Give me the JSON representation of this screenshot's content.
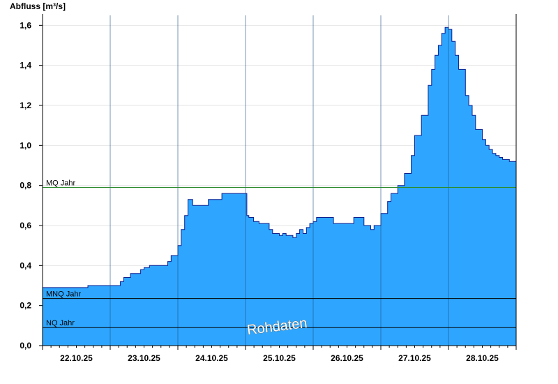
{
  "chart_data": {
    "type": "area",
    "ylabel": "Abfluss [m³/s]",
    "ylim": [
      0,
      1.65
    ],
    "xlim": [
      0,
      7
    ],
    "grid": true,
    "yticks": [
      0,
      0.2,
      0.4,
      0.6,
      0.8,
      1.0,
      1.2,
      1.4,
      1.6
    ],
    "ytick_labels": [
      "0,0",
      "0,2",
      "0,4",
      "0,6",
      "0,8",
      "1,0",
      "1,2",
      "1,4",
      "1,6"
    ],
    "xtick_labels": [
      "22.10.25",
      "23.10.25",
      "24.10.25",
      "25.10.25",
      "26.10.25",
      "27.10.25",
      "28.10.25"
    ],
    "reference_lines": [
      {
        "label": "MQ Jahr",
        "value": 0.79,
        "color": "#2e8b2e"
      },
      {
        "label": "MNQ Jahr",
        "value": 0.235,
        "color": "#000000"
      },
      {
        "label": "NQ Jahr",
        "value": 0.09,
        "color": "#000000"
      }
    ],
    "fill_color": "#2ea6ff",
    "line_color": "#0a1f8f",
    "watermark": "Rohdaten",
    "series": [
      {
        "x": [
          0.0,
          0.65,
          0.67,
          1.1,
          1.15,
          1.2,
          1.3,
          1.45,
          1.5,
          1.58,
          1.85,
          1.9,
          2.0,
          2.05,
          2.1,
          2.15,
          2.2,
          2.22,
          2.3,
          2.45,
          2.5,
          2.65,
          2.7,
          2.95,
          3.02,
          3.05,
          3.12,
          3.2,
          3.35,
          3.4,
          3.5,
          3.55,
          3.6,
          3.7,
          3.75,
          3.8,
          3.85,
          3.9,
          3.95,
          4.0,
          4.05,
          4.1,
          4.15,
          4.3,
          4.55,
          4.6,
          4.75,
          4.85,
          4.9,
          5.0,
          5.1,
          5.15,
          5.25,
          5.35,
          5.45,
          5.5,
          5.6,
          5.7,
          5.75,
          5.8,
          5.85,
          5.9,
          5.95,
          6.0,
          6.05,
          6.1,
          6.15,
          6.25,
          6.3,
          6.35,
          6.4,
          6.5,
          6.55,
          6.6,
          6.65,
          6.7,
          6.75,
          6.8,
          6.85,
          6.9,
          6.95,
          7.0
        ],
        "y": [
          0.29,
          0.29,
          0.3,
          0.3,
          0.32,
          0.34,
          0.36,
          0.38,
          0.39,
          0.4,
          0.42,
          0.45,
          0.5,
          0.58,
          0.65,
          0.73,
          0.73,
          0.7,
          0.7,
          0.73,
          0.73,
          0.76,
          0.76,
          0.76,
          0.65,
          0.64,
          0.62,
          0.61,
          0.58,
          0.56,
          0.55,
          0.56,
          0.55,
          0.54,
          0.56,
          0.58,
          0.56,
          0.59,
          0.61,
          0.62,
          0.64,
          0.64,
          0.64,
          0.61,
          0.61,
          0.64,
          0.6,
          0.58,
          0.6,
          0.66,
          0.72,
          0.76,
          0.8,
          0.86,
          0.95,
          1.05,
          1.15,
          1.3,
          1.38,
          1.45,
          1.5,
          1.56,
          1.59,
          1.58,
          1.52,
          1.45,
          1.38,
          1.25,
          1.2,
          1.15,
          1.08,
          1.03,
          1.0,
          0.98,
          0.96,
          0.95,
          0.94,
          0.93,
          0.93,
          0.92,
          0.92,
          0.92
        ]
      }
    ]
  }
}
